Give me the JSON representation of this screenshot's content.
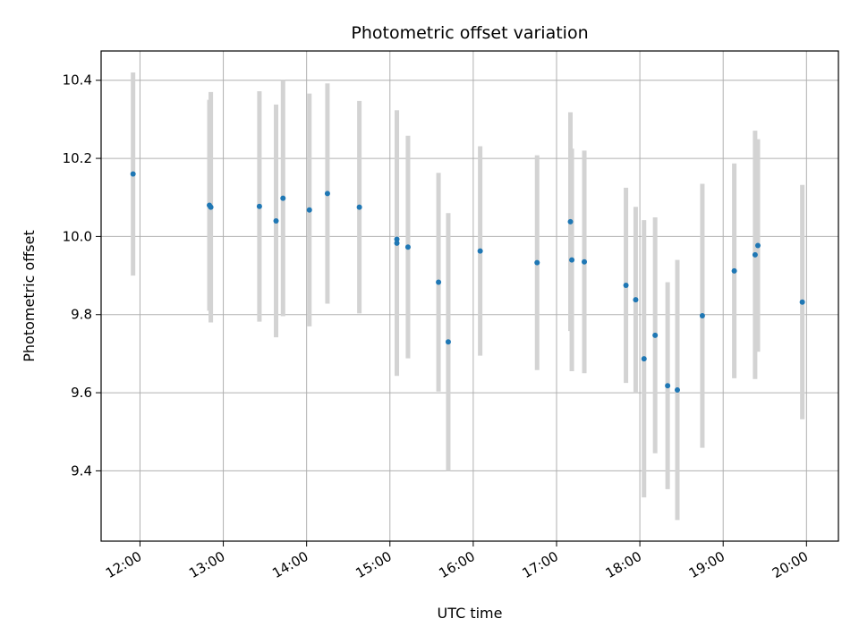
{
  "chart_data": {
    "type": "scatter",
    "title": "Photometric offset variation",
    "xlabel": "UTC time",
    "ylabel": "Photometric offset",
    "x_ticks": [
      "12:00",
      "13:00",
      "14:00",
      "15:00",
      "16:00",
      "17:00",
      "18:00",
      "19:00",
      "20:00"
    ],
    "y_ticks": [
      9.4,
      9.6,
      9.8,
      10.0,
      10.2,
      10.4
    ],
    "xlim": [
      "11:32",
      "20:23"
    ],
    "ylim": [
      9.22,
      10.475
    ],
    "grid": true,
    "colors": {
      "point": "#1f77b4",
      "errorbar": "#d3d3d3",
      "grid": "#b0b0b0"
    },
    "series": [
      {
        "points": [
          {
            "x": "11:55",
            "y": 10.16,
            "err": 0.26
          },
          {
            "x": "12:50",
            "y": 10.08,
            "err": 0.27
          },
          {
            "x": "12:51",
            "y": 10.075,
            "err": 0.295
          },
          {
            "x": "13:26",
            "y": 10.077,
            "err": 0.295
          },
          {
            "x": "13:38",
            "y": 10.04,
            "err": 0.298
          },
          {
            "x": "13:43",
            "y": 10.098,
            "err": 0.302
          },
          {
            "x": "14:02",
            "y": 10.068,
            "err": 0.298
          },
          {
            "x": "14:15",
            "y": 10.11,
            "err": 0.282
          },
          {
            "x": "14:38",
            "y": 10.075,
            "err": 0.272
          },
          {
            "x": "15:05",
            "y": 9.993,
            "err": 0.33
          },
          {
            "x": "15:05",
            "y": 9.983,
            "err": 0.34
          },
          {
            "x": "15:13",
            "y": 9.973,
            "err": 0.285
          },
          {
            "x": "15:35",
            "y": 9.883,
            "err": 0.28
          },
          {
            "x": "15:42",
            "y": 9.73,
            "err": 0.33
          },
          {
            "x": "16:05",
            "y": 9.963,
            "err": 0.268
          },
          {
            "x": "16:46",
            "y": 9.933,
            "err": 0.275
          },
          {
            "x": "17:10",
            "y": 10.038,
            "err": 0.28
          },
          {
            "x": "17:11",
            "y": 9.94,
            "err": 0.285
          },
          {
            "x": "17:20",
            "y": 9.935,
            "err": 0.285
          },
          {
            "x": "17:50",
            "y": 9.875,
            "err": 0.25
          },
          {
            "x": "17:57",
            "y": 9.838,
            "err": 0.238
          },
          {
            "x": "18:03",
            "y": 9.687,
            "err": 0.355
          },
          {
            "x": "18:11",
            "y": 9.747,
            "err": 0.302
          },
          {
            "x": "18:20",
            "y": 9.618,
            "err": 0.265
          },
          {
            "x": "18:27",
            "y": 9.607,
            "err": 0.333
          },
          {
            "x": "18:45",
            "y": 9.797,
            "err": 0.338
          },
          {
            "x": "19:08",
            "y": 9.912,
            "err": 0.275
          },
          {
            "x": "19:23",
            "y": 9.953,
            "err": 0.318
          },
          {
            "x": "19:25",
            "y": 9.977,
            "err": 0.272
          },
          {
            "x": "19:57",
            "y": 9.832,
            "err": 0.3
          }
        ]
      }
    ]
  }
}
